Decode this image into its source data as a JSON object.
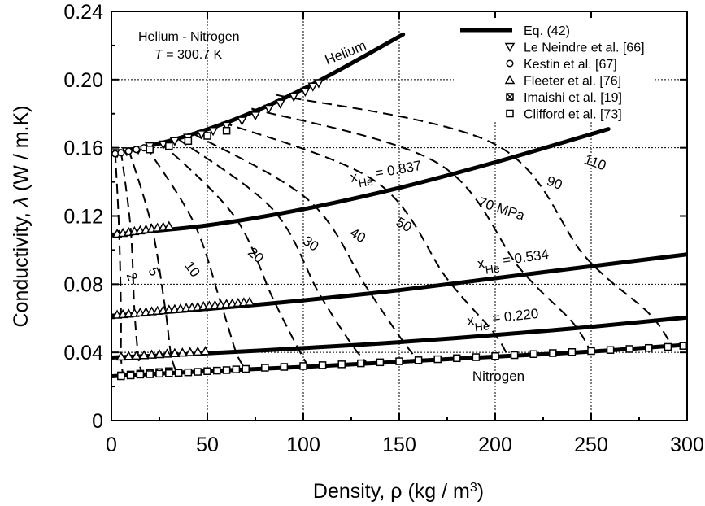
{
  "chart_data": {
    "type": "line",
    "title": "",
    "annotation": {
      "line1": "Helium - Nitrogen",
      "line2_symbol": "T",
      "line2_rest": " = 300.7 K"
    },
    "xlabel": {
      "main": "Density, ",
      "symbol": "ρ",
      "unit": "  (kg / m",
      "sup": "3",
      "close": ")"
    },
    "ylabel": {
      "main": "Conductivity, ",
      "symbol": "λ",
      "unit": " (W / m.K)"
    },
    "xlim": [
      0,
      300
    ],
    "ylim": [
      0,
      0.24
    ],
    "x_ticks": [
      0,
      50,
      100,
      150,
      200,
      250,
      300
    ],
    "x_tick_labels": [
      "0",
      "50",
      "100",
      "150",
      "200",
      "250",
      "300"
    ],
    "y_ticks": [
      0,
      0.04,
      0.08,
      0.12,
      0.16,
      0.2,
      0.24
    ],
    "y_tick_labels": [
      "0",
      "0.04",
      "0.08",
      "0.12",
      "0.16",
      "0.20",
      "0.24"
    ],
    "grid": true,
    "legend_position": "top-right",
    "legend": [
      {
        "label": "Eq. (42)",
        "marker": "line"
      },
      {
        "label": "Le Neindre et al. [66]",
        "marker": "triangle-down"
      },
      {
        "label": "Kestin et al. [67]",
        "marker": "circle"
      },
      {
        "label": "Fleeter et al. [76]",
        "marker": "triangle-up"
      },
      {
        "label": "Imaishi et al. [19]",
        "marker": "square-x"
      },
      {
        "label": "Clifford et al. [73]",
        "marker": "square"
      }
    ],
    "fit_curves": [
      {
        "label": "Helium",
        "x": [
          0,
          25,
          50,
          75,
          100,
          125,
          152
        ],
        "y": [
          0.1565,
          0.1625,
          0.1708,
          0.1815,
          0.1945,
          0.2095,
          0.2265
        ]
      },
      {
        "label_base": "x",
        "label_sub": "He",
        "label_rest": " = 0.837",
        "x": [
          0,
          50,
          100,
          150,
          200,
          259
        ],
        "y": [
          0.109,
          0.1145,
          0.124,
          0.1365,
          0.1515,
          0.171
        ]
      },
      {
        "label_base": "x",
        "label_sub": "He",
        "label_rest": " = 0.534",
        "x": [
          0,
          50,
          100,
          150,
          200,
          250,
          300
        ],
        "y": [
          0.0615,
          0.0655,
          0.0705,
          0.0765,
          0.0835,
          0.0905,
          0.0975
        ]
      },
      {
        "label_base": "x",
        "label_sub": "He",
        "label_rest": " = 0.220",
        "x": [
          0,
          50,
          100,
          150,
          200,
          250,
          300
        ],
        "y": [
          0.037,
          0.0395,
          0.0425,
          0.046,
          0.0502,
          0.055,
          0.0605
        ]
      },
      {
        "label": "Nitrogen",
        "x": [
          0,
          50,
          100,
          150,
          200,
          250,
          300
        ],
        "y": [
          0.026,
          0.029,
          0.0315,
          0.0345,
          0.0375,
          0.0405,
          0.0445
        ]
      }
    ],
    "isobars": [
      {
        "label": "2",
        "unit": "",
        "x": [
          2,
          4,
          5,
          5,
          6
        ],
        "y": [
          0.157,
          0.112,
          0.064,
          0.038,
          0.027
        ]
      },
      {
        "label": "5",
        "unit": "",
        "x": [
          5,
          10,
          12,
          14,
          16
        ],
        "y": [
          0.158,
          0.113,
          0.065,
          0.038,
          0.027
        ]
      },
      {
        "label": "10",
        "unit": "",
        "x": [
          9,
          21,
          28,
          31,
          34
        ],
        "y": [
          0.159,
          0.114,
          0.066,
          0.039,
          0.028
        ]
      },
      {
        "label": "20",
        "unit": "",
        "x": [
          18,
          43,
          57,
          65,
          70
        ],
        "y": [
          0.161,
          0.116,
          0.069,
          0.04,
          0.03
        ]
      },
      {
        "label": "30",
        "unit": "",
        "x": [
          26,
          64,
          84,
          97,
          103
        ],
        "y": [
          0.163,
          0.12,
          0.072,
          0.043,
          0.031
        ]
      },
      {
        "label": "40",
        "unit": "",
        "x": [
          35,
          84,
          108,
          125,
          133
        ],
        "y": [
          0.165,
          0.124,
          0.075,
          0.045,
          0.034
        ]
      },
      {
        "label": "50",
        "unit": "",
        "x": [
          43,
          103,
          133,
          151,
          160
        ],
        "y": [
          0.168,
          0.129,
          0.078,
          0.048,
          0.035
        ]
      },
      {
        "label": "70",
        "unit": "MPa",
        "x": [
          58,
          138,
          175,
          199,
          207
        ],
        "y": [
          0.175,
          0.14,
          0.083,
          0.052,
          0.037
        ]
      },
      {
        "label": "90",
        "unit": "",
        "x": [
          73,
          170,
          213,
          240,
          250
        ],
        "y": [
          0.183,
          0.151,
          0.089,
          0.058,
          0.04
        ]
      },
      {
        "label": "110",
        "unit": "",
        "x": [
          86,
          200,
          247,
          280,
          292
        ],
        "y": [
          0.191,
          0.162,
          0.096,
          0.063,
          0.044
        ]
      }
    ],
    "series": [
      {
        "name": "Le Neindre et al. [66]",
        "marker": "triangle-down",
        "x": [
          3,
          8,
          14,
          20,
          27,
          33,
          40,
          47,
          53,
          60,
          68,
          75,
          82,
          88,
          95,
          101,
          105,
          108
        ],
        "y": [
          0.157,
          0.158,
          0.159,
          0.161,
          0.162,
          0.164,
          0.166,
          0.168,
          0.17,
          0.173,
          0.176,
          0.179,
          0.183,
          0.186,
          0.19,
          0.193,
          0.196,
          0.198
        ]
      },
      {
        "name": "Kestin et al. [67]",
        "marker": "circle",
        "x": [
          2,
          5,
          9,
          13,
          17
        ],
        "y": [
          0.1565,
          0.157,
          0.158,
          0.159,
          0.16
        ]
      },
      {
        "name": "Fleeter et al. [76]",
        "marker": "triangle-up",
        "x": [
          3,
          6,
          9,
          12,
          15,
          18,
          21,
          24,
          27,
          30,
          3,
          6,
          9,
          12,
          15,
          18,
          21,
          24,
          27,
          30,
          33,
          36,
          39,
          42,
          45,
          48,
          51,
          54,
          57,
          60,
          63,
          66,
          69,
          72,
          5,
          9,
          13,
          17,
          21,
          25,
          29,
          33,
          37,
          41,
          45,
          49
        ],
        "y": [
          0.1095,
          0.11,
          0.1105,
          0.111,
          0.1115,
          0.112,
          0.1125,
          0.113,
          0.1135,
          0.114,
          0.062,
          0.0623,
          0.0626,
          0.063,
          0.0633,
          0.0636,
          0.064,
          0.0643,
          0.0646,
          0.065,
          0.0653,
          0.0656,
          0.066,
          0.0663,
          0.0666,
          0.067,
          0.0673,
          0.0676,
          0.068,
          0.0683,
          0.0686,
          0.069,
          0.0693,
          0.0696,
          0.0375,
          0.0378,
          0.038,
          0.0383,
          0.0386,
          0.0389,
          0.0392,
          0.0395,
          0.0398,
          0.0401,
          0.0404,
          0.0407
        ]
      },
      {
        "name": "Imaishi et al. [19]",
        "marker": "square-x",
        "x": [
          5,
          10,
          15,
          20,
          25,
          30
        ],
        "y": [
          0.0265,
          0.027,
          0.0275,
          0.028,
          0.0285,
          0.029
        ]
      },
      {
        "name": "Clifford et al. [73]",
        "marker": "square",
        "x": [
          5,
          10,
          15,
          20,
          25,
          30,
          35,
          40,
          45,
          50,
          55,
          60,
          65,
          70,
          80,
          90,
          100,
          110,
          120,
          130,
          140,
          150,
          160,
          170,
          180,
          190,
          200,
          210,
          220,
          230,
          240,
          250,
          260,
          270,
          280,
          290,
          298,
          20,
          30,
          40,
          50,
          60
        ],
        "y": [
          0.026,
          0.0265,
          0.027,
          0.0272,
          0.0275,
          0.0278,
          0.028,
          0.0283,
          0.0286,
          0.029,
          0.0293,
          0.0296,
          0.03,
          0.0303,
          0.031,
          0.0315,
          0.032,
          0.0325,
          0.033,
          0.0336,
          0.0342,
          0.0348,
          0.0354,
          0.036,
          0.0366,
          0.0372,
          0.0378,
          0.0384,
          0.039,
          0.0396,
          0.0402,
          0.0408,
          0.0414,
          0.042,
          0.0426,
          0.0432,
          0.0438,
          0.159,
          0.161,
          0.164,
          0.167,
          0.17
        ]
      }
    ]
  }
}
